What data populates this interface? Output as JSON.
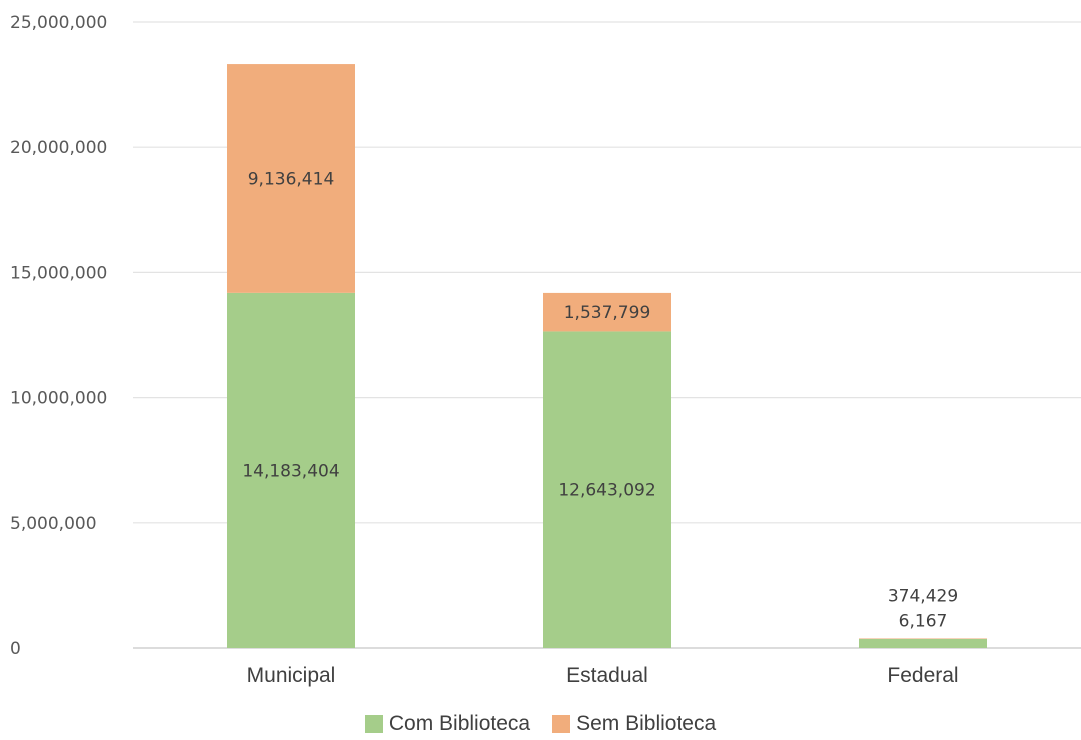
{
  "chart_data": {
    "type": "bar",
    "stacked": true,
    "categories": [
      "Municipal",
      "Estadual",
      "Federal"
    ],
    "series": [
      {
        "name": "Com Biblioteca",
        "color": "#a5cd8a",
        "values": [
          14183404,
          12643092,
          374429
        ],
        "labels": [
          "14,183,404",
          "12,643,092",
          "374,429"
        ]
      },
      {
        "name": "Sem Biblioteca",
        "color": "#f1ad7c",
        "values": [
          9136414,
          1537799,
          6167
        ],
        "labels": [
          "9,136,414",
          "1,537,799",
          "6,167"
        ]
      }
    ],
    "ylim": [
      0,
      25000000
    ],
    "yticks": [
      0,
      5000000,
      10000000,
      15000000,
      20000000,
      25000000
    ],
    "ytick_labels": [
      "0",
      "5,000,000",
      "10,000,000",
      "15,000,000",
      "20,000,000",
      "25,000,000"
    ],
    "grid": true,
    "legend_position": "bottom"
  }
}
